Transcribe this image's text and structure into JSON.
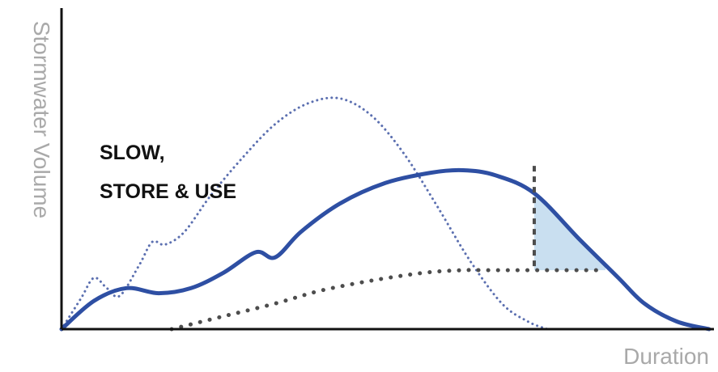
{
  "chart_data": {
    "type": "line",
    "title": "",
    "xlabel": "Duration",
    "ylabel": "Stormwater Volume",
    "xlim": [
      0,
      100
    ],
    "ylim": [
      0,
      100
    ],
    "grid": false,
    "annotation_lines": [
      "SLOW,",
      "STORE & USE"
    ],
    "series": [
      {
        "style": "dotted",
        "color": "#5b6fb0",
        "points": [
          [
            0,
            0
          ],
          [
            3,
            12
          ],
          [
            5,
            20
          ],
          [
            7,
            16
          ],
          [
            9,
            13
          ],
          [
            12,
            25
          ],
          [
            14,
            34
          ],
          [
            16,
            33
          ],
          [
            19,
            38
          ],
          [
            23,
            52
          ],
          [
            28,
            67
          ],
          [
            33,
            80
          ],
          [
            38,
            88
          ],
          [
            43,
            90
          ],
          [
            48,
            83
          ],
          [
            53,
            68
          ],
          [
            58,
            48
          ],
          [
            63,
            27
          ],
          [
            68,
            10
          ],
          [
            72,
            3
          ],
          [
            75,
            0
          ]
        ]
      },
      {
        "style": "solid",
        "color": "#2e4fa3",
        "points": [
          [
            0,
            0
          ],
          [
            5,
            11
          ],
          [
            10,
            16
          ],
          [
            15,
            14
          ],
          [
            20,
            16
          ],
          [
            25,
            22
          ],
          [
            30,
            30
          ],
          [
            33,
            28
          ],
          [
            37,
            38
          ],
          [
            43,
            49
          ],
          [
            50,
            57
          ],
          [
            57,
            61
          ],
          [
            62,
            62
          ],
          [
            67,
            60
          ],
          [
            73,
            53
          ],
          [
            80,
            35
          ],
          [
            86,
            20
          ],
          [
            90,
            10
          ],
          [
            95,
            3
          ],
          [
            100,
            0
          ]
        ]
      },
      {
        "style": "dashed",
        "color": "#4d4d4d",
        "points": [
          [
            17,
            0
          ],
          [
            25,
            5
          ],
          [
            33,
            10
          ],
          [
            40,
            15
          ],
          [
            48,
            19
          ],
          [
            56,
            22
          ],
          [
            62,
            23
          ],
          [
            66,
            23
          ],
          [
            72,
            23
          ],
          [
            84,
            23
          ]
        ]
      }
    ],
    "reference_line": {
      "x": 73,
      "y_from": 23,
      "y_to": 56,
      "style": "dashed"
    },
    "highlight": {
      "color": "#c9dff0",
      "x_from": 73,
      "x_to": 84,
      "between": "solid-and-dashed"
    }
  }
}
